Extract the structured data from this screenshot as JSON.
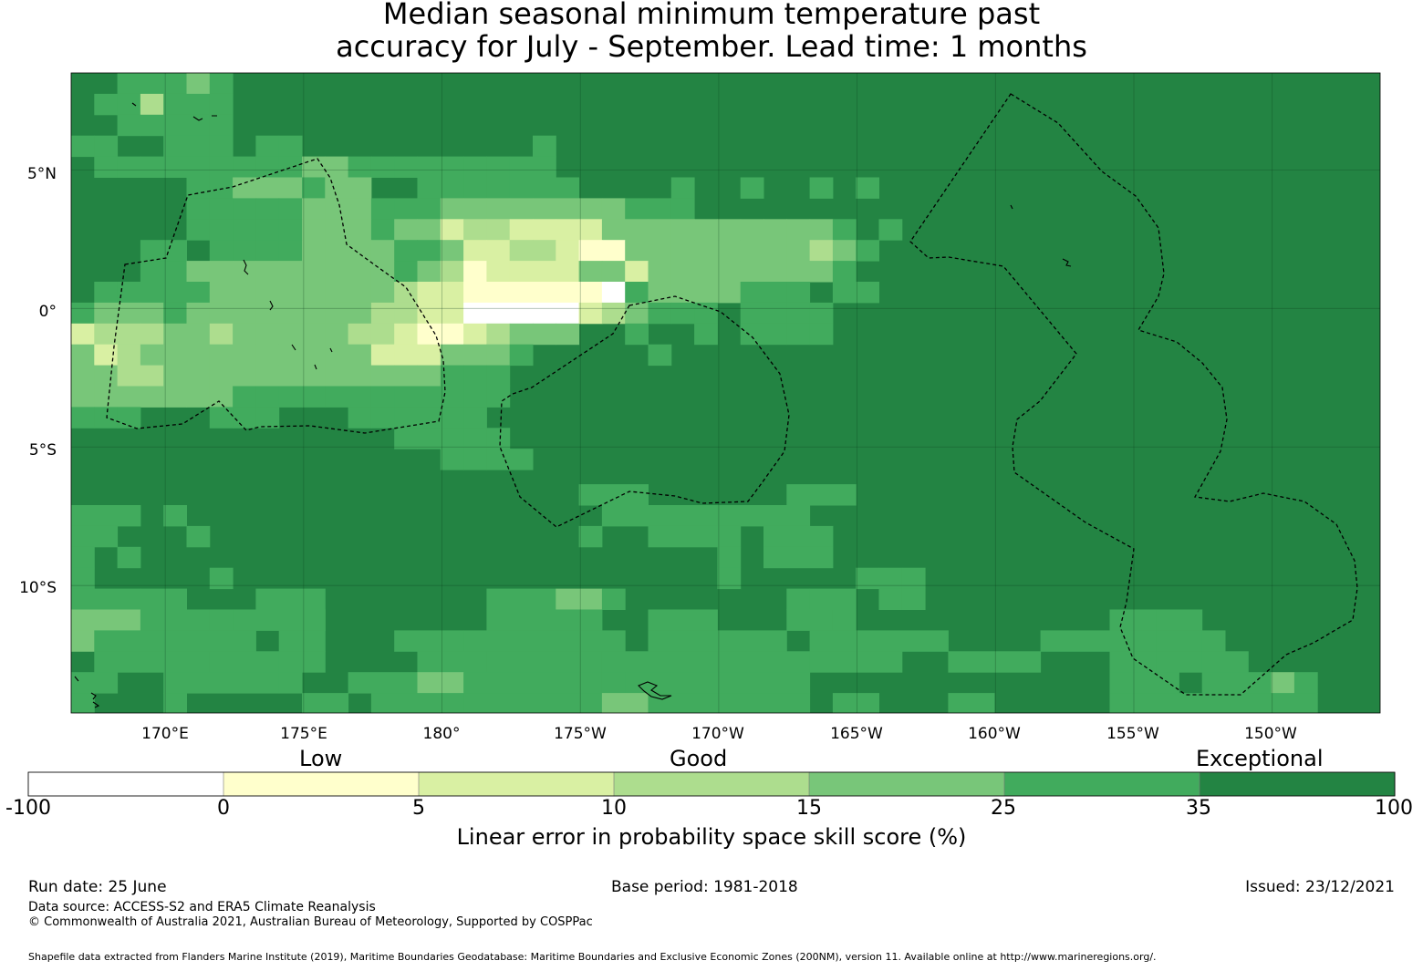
{
  "title": {
    "line1": "Median seasonal minimum temperature past",
    "line2": "accuracy for July - September. Lead time: 1 months"
  },
  "map": {
    "lat_ticks": [
      "5°N",
      "0°",
      "5°S",
      "10°S"
    ],
    "lon_ticks": [
      "170°E",
      "175°E",
      "180°",
      "175°W",
      "170°W",
      "165°W",
      "160°W",
      "155°W",
      "150°W"
    ],
    "extent": {
      "lon_min": 166.6,
      "lon_max": 213.9,
      "lat_min": -14.6,
      "lat_max": 8.5
    },
    "base_color": "#238443"
  },
  "legend": {
    "categories": [
      "Low",
      "Good",
      "Exceptional"
    ],
    "ticks": [
      "-100",
      "0",
      "5",
      "10",
      "15",
      "25",
      "35",
      "100"
    ],
    "colors": [
      "#ffffff",
      "#ffffcc",
      "#d9f0a3",
      "#addd8e",
      "#78c679",
      "#41ab5d",
      "#238443"
    ],
    "axis_label": "Linear error in probability space skill score (%)"
  },
  "footer": {
    "run_date": "Run date: 25 June",
    "base_period": "Base period: 1981-2018",
    "issued": "Issued: 23/12/2021",
    "data_source": "Data source: ACCESS-S2 and ERA5 Climate Reanalysis",
    "copyright": "© Commonwealth of Australia 2021, Australian Bureau of Meteorology, Supported by COSPPac",
    "shapefile": "Shapefile data extracted from Flanders Marine Institute (2019), Maritime Boundaries Geodatabase: Maritime Boundaries and Exclusive Economic Zones (200NM), version 11. Available online at http://www.marineregions.org/."
  }
}
